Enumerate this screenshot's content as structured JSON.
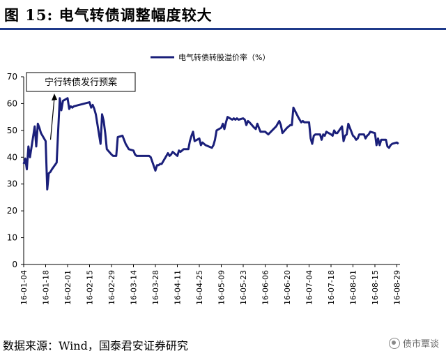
{
  "header": {
    "title": "图 15:  电气转债调整幅度较大"
  },
  "footer": {
    "source": "数据来源：Wind，国泰君安证券研究",
    "watermark": "债市覃谈",
    "watermark_icon": "wechat-icon"
  },
  "chart_data": {
    "type": "line",
    "legend_position": "top-center",
    "ylim": [
      0,
      70
    ],
    "yticks": [
      0,
      10,
      20,
      30,
      40,
      50,
      60,
      70
    ],
    "grid": false,
    "xlim": [
      "2016-01-04",
      "2016-08-31"
    ],
    "xtick_labels": [
      "16-01-04",
      "16-01-18",
      "16-02-01",
      "16-02-15",
      "16-02-29",
      "16-03-14",
      "16-03-28",
      "16-04-11",
      "16-04-25",
      "16-05-09",
      "16-05-23",
      "16-06-06",
      "16-06-20",
      "16-07-04",
      "16-07-18",
      "16-08-01",
      "16-08-15",
      "16-08-29"
    ],
    "xtick_dates": [
      "2016-01-04",
      "2016-01-18",
      "2016-02-01",
      "2016-02-15",
      "2016-02-29",
      "2016-03-14",
      "2016-03-28",
      "2016-04-11",
      "2016-04-25",
      "2016-05-09",
      "2016-05-23",
      "2016-06-06",
      "2016-06-20",
      "2016-07-04",
      "2016-07-18",
      "2016-08-01",
      "2016-08-15",
      "2016-08-29"
    ],
    "annotation": {
      "text": "宁行转债发行预案",
      "x": "2016-01-22",
      "y": 46
    },
    "series": [
      {
        "name": "电气转债转股溢价率（%）",
        "color": "#1a1f7a",
        "points": [
          [
            "2016-01-04",
            37.5
          ],
          [
            "2016-01-05",
            39.5
          ],
          [
            "2016-01-06",
            35.5
          ],
          [
            "2016-01-07",
            44
          ],
          [
            "2016-01-08",
            40
          ],
          [
            "2016-01-11",
            51.5
          ],
          [
            "2016-01-12",
            44
          ],
          [
            "2016-01-13",
            52.5
          ],
          [
            "2016-01-14",
            51
          ],
          [
            "2016-01-15",
            49
          ],
          [
            "2016-01-18",
            46
          ],
          [
            "2016-01-19",
            28
          ],
          [
            "2016-01-20",
            34
          ],
          [
            "2016-01-21",
            34.5
          ],
          [
            "2016-01-22",
            35.5
          ],
          [
            "2016-01-25",
            38
          ],
          [
            "2016-01-26",
            50
          ],
          [
            "2016-01-27",
            62
          ],
          [
            "2016-01-28",
            57.5
          ],
          [
            "2016-01-29",
            61
          ],
          [
            "2016-02-01",
            62
          ],
          [
            "2016-02-02",
            58
          ],
          [
            "2016-02-03",
            59
          ],
          [
            "2016-02-04",
            58.5
          ],
          [
            "2016-02-05",
            59
          ],
          [
            "2016-02-15",
            60.5
          ],
          [
            "2016-02-16",
            58.5
          ],
          [
            "2016-02-17",
            59.5
          ],
          [
            "2016-02-18",
            58
          ],
          [
            "2016-02-19",
            56
          ],
          [
            "2016-02-22",
            45
          ],
          [
            "2016-02-23",
            56
          ],
          [
            "2016-02-24",
            53.5
          ],
          [
            "2016-02-25",
            49
          ],
          [
            "2016-02-26",
            43
          ],
          [
            "2016-02-29",
            41
          ],
          [
            "2016-03-01",
            40.5
          ],
          [
            "2016-03-03",
            40.5
          ],
          [
            "2016-03-04",
            47.5
          ],
          [
            "2016-03-07",
            48
          ],
          [
            "2016-03-08",
            46.5
          ],
          [
            "2016-03-09",
            45
          ],
          [
            "2016-03-10",
            44
          ],
          [
            "2016-03-11",
            43
          ],
          [
            "2016-03-14",
            42.5
          ],
          [
            "2016-03-15",
            41
          ],
          [
            "2016-03-16",
            40.5
          ],
          [
            "2016-03-24",
            40.5
          ],
          [
            "2016-03-25",
            40
          ],
          [
            "2016-03-28",
            35
          ],
          [
            "2016-03-29",
            37
          ],
          [
            "2016-03-30",
            37
          ],
          [
            "2016-03-31",
            37.5
          ],
          [
            "2016-04-01",
            37.5
          ],
          [
            "2016-04-05",
            41.5
          ],
          [
            "2016-04-06",
            40.5
          ],
          [
            "2016-04-07",
            41
          ],
          [
            "2016-04-08",
            42
          ],
          [
            "2016-04-11",
            40.5
          ],
          [
            "2016-04-12",
            42.5
          ],
          [
            "2016-04-13",
            42
          ],
          [
            "2016-04-14",
            42.5
          ],
          [
            "2016-04-15",
            43
          ],
          [
            "2016-04-18",
            43
          ],
          [
            "2016-04-19",
            46
          ],
          [
            "2016-04-20",
            48
          ],
          [
            "2016-04-21",
            49.5
          ],
          [
            "2016-04-22",
            46
          ],
          [
            "2016-04-25",
            47
          ],
          [
            "2016-04-26",
            44.5
          ],
          [
            "2016-04-27",
            45.5
          ],
          [
            "2016-04-28",
            45
          ],
          [
            "2016-04-29",
            44.5
          ],
          [
            "2016-05-03",
            43.5
          ],
          [
            "2016-05-04",
            44.5
          ],
          [
            "2016-05-05",
            46.5
          ],
          [
            "2016-05-06",
            50
          ],
          [
            "2016-05-09",
            51
          ],
          [
            "2016-05-10",
            52.5
          ],
          [
            "2016-05-11",
            50.5
          ],
          [
            "2016-05-12",
            53
          ],
          [
            "2016-05-13",
            55
          ],
          [
            "2016-05-16",
            54
          ],
          [
            "2016-05-17",
            54.5
          ],
          [
            "2016-05-18",
            54
          ],
          [
            "2016-05-19",
            54.5
          ],
          [
            "2016-05-20",
            54
          ],
          [
            "2016-05-23",
            54.5
          ],
          [
            "2016-05-24",
            54
          ],
          [
            "2016-05-25",
            52
          ],
          [
            "2016-05-26",
            53.5
          ],
          [
            "2016-05-27",
            53
          ],
          [
            "2016-05-30",
            51
          ],
          [
            "2016-05-31",
            50.5
          ],
          [
            "2016-06-01",
            52.5
          ],
          [
            "2016-06-02",
            51
          ],
          [
            "2016-06-03",
            49.5
          ],
          [
            "2016-06-06",
            49.5
          ],
          [
            "2016-06-07",
            49
          ],
          [
            "2016-06-08",
            48.5
          ],
          [
            "2016-06-13",
            51.5
          ],
          [
            "2016-06-14",
            52.5
          ],
          [
            "2016-06-15",
            53.5
          ],
          [
            "2016-06-16",
            52
          ],
          [
            "2016-06-17",
            49
          ],
          [
            "2016-06-20",
            51
          ],
          [
            "2016-06-21",
            51.5
          ],
          [
            "2016-06-22",
            52
          ],
          [
            "2016-06-23",
            52
          ],
          [
            "2016-06-24",
            58.5
          ],
          [
            "2016-06-27",
            55
          ],
          [
            "2016-06-28",
            54
          ],
          [
            "2016-06-29",
            53
          ],
          [
            "2016-06-30",
            53.5
          ],
          [
            "2016-07-01",
            53
          ],
          [
            "2016-07-04",
            53
          ],
          [
            "2016-07-05",
            47
          ],
          [
            "2016-07-06",
            45
          ],
          [
            "2016-07-07",
            48
          ],
          [
            "2016-07-08",
            48.5
          ],
          [
            "2016-07-11",
            48.5
          ],
          [
            "2016-07-12",
            46.5
          ],
          [
            "2016-07-13",
            48.5
          ],
          [
            "2016-07-14",
            48
          ],
          [
            "2016-07-15",
            49.5
          ],
          [
            "2016-07-18",
            48.5
          ],
          [
            "2016-07-19",
            48
          ],
          [
            "2016-07-20",
            50
          ],
          [
            "2016-07-21",
            49
          ],
          [
            "2016-07-22",
            49
          ],
          [
            "2016-07-25",
            51.5
          ],
          [
            "2016-07-26",
            46
          ],
          [
            "2016-07-27",
            48
          ],
          [
            "2016-07-28",
            48.5
          ],
          [
            "2016-07-29",
            52.5
          ],
          [
            "2016-08-01",
            48
          ],
          [
            "2016-08-02",
            47.5
          ],
          [
            "2016-08-03",
            46.5
          ],
          [
            "2016-08-04",
            47
          ],
          [
            "2016-08-05",
            48.5
          ],
          [
            "2016-08-08",
            48.5
          ],
          [
            "2016-08-09",
            47
          ],
          [
            "2016-08-10",
            48
          ],
          [
            "2016-08-11",
            48.5
          ],
          [
            "2016-08-12",
            49.5
          ],
          [
            "2016-08-15",
            49
          ],
          [
            "2016-08-16",
            44.5
          ],
          [
            "2016-08-17",
            47
          ],
          [
            "2016-08-18",
            44.5
          ],
          [
            "2016-08-19",
            46.5
          ],
          [
            "2016-08-22",
            46.5
          ],
          [
            "2016-08-23",
            44
          ],
          [
            "2016-08-24",
            43.5
          ],
          [
            "2016-08-25",
            44.5
          ],
          [
            "2016-08-26",
            45
          ],
          [
            "2016-08-29",
            45.5
          ],
          [
            "2016-08-30",
            45
          ]
        ]
      }
    ]
  }
}
